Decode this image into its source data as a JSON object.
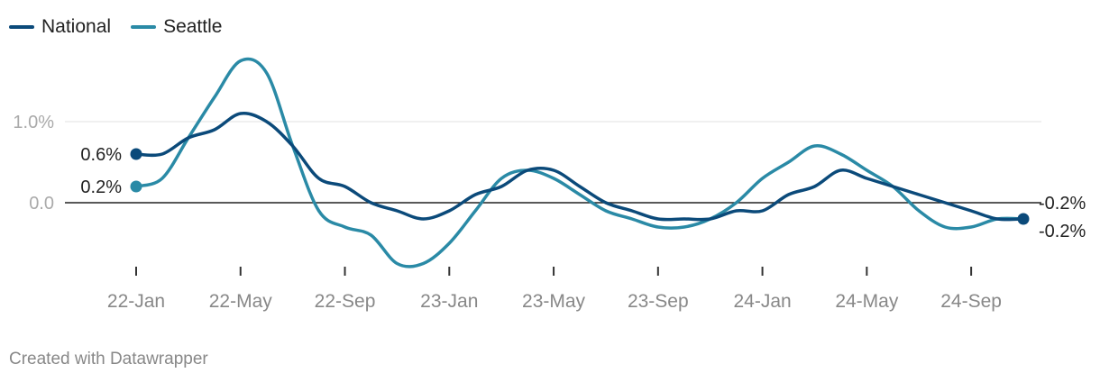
{
  "chart_data": {
    "type": "line",
    "y_ticks": [
      {
        "value": 1.0,
        "label": "1.0%"
      },
      {
        "value": 0.0,
        "label": "0.0"
      }
    ],
    "ylim": [
      -0.8,
      1.8
    ],
    "x_range": [
      0,
      35
    ],
    "x_ticks": [
      {
        "x": 0,
        "label": "22-Jan"
      },
      {
        "x": 4,
        "label": "22-May"
      },
      {
        "x": 8,
        "label": "22-Sep"
      },
      {
        "x": 12,
        "label": "23-Jan"
      },
      {
        "x": 16,
        "label": "23-May"
      },
      {
        "x": 20,
        "label": "23-Sep"
      },
      {
        "x": 24,
        "label": "24-Jan"
      },
      {
        "x": 28,
        "label": "24-May"
      },
      {
        "x": 32,
        "label": "24-Sep"
      }
    ],
    "series": [
      {
        "name": "National",
        "color": "#0b4a7a",
        "points": [
          [
            0,
            0.6
          ],
          [
            1,
            0.6
          ],
          [
            2,
            0.8
          ],
          [
            3,
            0.9
          ],
          [
            4,
            1.1
          ],
          [
            5,
            1.0
          ],
          [
            6,
            0.7
          ],
          [
            7,
            0.3
          ],
          [
            8,
            0.2
          ],
          [
            9,
            0.0
          ],
          [
            10,
            -0.1
          ],
          [
            11,
            -0.2
          ],
          [
            12,
            -0.1
          ],
          [
            13,
            0.1
          ],
          [
            14,
            0.2
          ],
          [
            15,
            0.4
          ],
          [
            16,
            0.4
          ],
          [
            17,
            0.2
          ],
          [
            18,
            0.0
          ],
          [
            19,
            -0.1
          ],
          [
            20,
            -0.2
          ],
          [
            21,
            -0.2
          ],
          [
            22,
            -0.2
          ],
          [
            23,
            -0.1
          ],
          [
            24,
            -0.1
          ],
          [
            25,
            0.1
          ],
          [
            26,
            0.2
          ],
          [
            27,
            0.4
          ],
          [
            28,
            0.3
          ],
          [
            29,
            0.2
          ],
          [
            30,
            0.1
          ],
          [
            31,
            0.0
          ],
          [
            32,
            -0.1
          ],
          [
            33,
            -0.2
          ],
          [
            34,
            -0.2
          ]
        ],
        "start_label": "0.6%",
        "end_label": "-0.2%"
      },
      {
        "name": "Seattle",
        "color": "#2a8aa6",
        "points": [
          [
            0,
            0.2
          ],
          [
            1,
            0.3
          ],
          [
            2,
            0.8
          ],
          [
            3,
            1.3
          ],
          [
            4,
            1.75
          ],
          [
            5,
            1.6
          ],
          [
            6,
            0.7
          ],
          [
            7,
            -0.1
          ],
          [
            8,
            -0.3
          ],
          [
            9,
            -0.4
          ],
          [
            10,
            -0.75
          ],
          [
            11,
            -0.75
          ],
          [
            12,
            -0.5
          ],
          [
            13,
            -0.1
          ],
          [
            14,
            0.3
          ],
          [
            15,
            0.4
          ],
          [
            16,
            0.3
          ],
          [
            17,
            0.1
          ],
          [
            18,
            -0.1
          ],
          [
            19,
            -0.2
          ],
          [
            20,
            -0.3
          ],
          [
            21,
            -0.3
          ],
          [
            22,
            -0.2
          ],
          [
            23,
            0.0
          ],
          [
            24,
            0.3
          ],
          [
            25,
            0.5
          ],
          [
            26,
            0.7
          ],
          [
            27,
            0.6
          ],
          [
            28,
            0.4
          ],
          [
            29,
            0.2
          ],
          [
            30,
            -0.1
          ],
          [
            31,
            -0.3
          ],
          [
            32,
            -0.3
          ],
          [
            33,
            -0.2
          ],
          [
            34,
            -0.2
          ]
        ],
        "start_label": "0.2%",
        "end_label": "-0.2%"
      }
    ]
  },
  "credit": "Created with Datawrapper"
}
